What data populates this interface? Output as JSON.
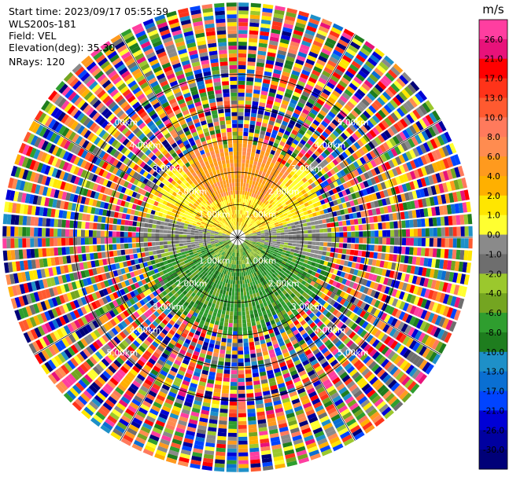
{
  "header": {
    "start_time": "Start time: 2023/09/17 05:55:59",
    "instrument": "WLS200s-181",
    "field": "Field: VEL",
    "elevation": "Elevation(deg): 35.30",
    "nrays": "NRays: 120"
  },
  "colorbar": {
    "unit": "m/s",
    "ticks": [
      "26.0",
      "21.0",
      "17.0",
      "13.0",
      "10.0",
      "8.0",
      "6.0",
      "4.0",
      "2.0",
      "1.0",
      "0.0",
      "-1.0",
      "-2.0",
      "-4.0",
      "-6.0",
      "-8.0",
      "-10.0",
      "-13.0",
      "-17.0",
      "-21.0",
      "-26.0",
      "-30.0"
    ],
    "colors": [
      "#ff3ea0",
      "#e8127a",
      "#ff0000",
      "#ff3319",
      "#ff5a30",
      "#ff7a5c",
      "#ff8c50",
      "#ff9a1e",
      "#ffb000",
      "#ffe600",
      "#ffff30",
      "#8a8a8a",
      "#6e6e6e",
      "#9bc82d",
      "#74a521",
      "#2f9e2f",
      "#1e7d1e",
      "#1e90c8",
      "#0a6fd2",
      "#0044ff",
      "#0000d6",
      "#0000a0",
      "#000078"
    ]
  },
  "chart_data": {
    "type": "heatmap",
    "projection": "polar PPI",
    "field": "VEL",
    "rays": 120,
    "range_ring_labels": [
      "1.00km",
      "2.00km",
      "3.00km",
      "4.00km",
      "5.00km"
    ],
    "range_ring_km": [
      1,
      2,
      3,
      4,
      5
    ],
    "max_range_km": 7.2,
    "pattern": {
      "north_sector": "positive velocities (approx. 2 to 6 m/s, yellow/orange) within about 3 km",
      "south_sector": "negative velocities (approx. -2 to -6 m/s, green) within about 3 km",
      "east_west": "near-zero velocities (approx. 0 to -1 m/s, gray)",
      "outer_ranges": "noisy values across the full color scale beyond about 3 km"
    }
  }
}
